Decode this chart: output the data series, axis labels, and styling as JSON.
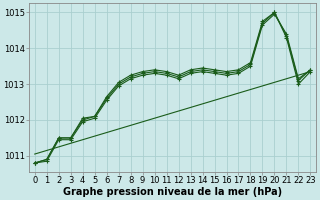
{
  "xlabel": "Graphe pression niveau de la mer (hPa)",
  "bg_color": "#cce8e8",
  "grid_color": "#aacfcf",
  "line_color": "#1a5c1a",
  "x_values": [
    0,
    1,
    2,
    3,
    4,
    5,
    6,
    7,
    8,
    9,
    10,
    11,
    12,
    13,
    14,
    15,
    16,
    17,
    18,
    19,
    20,
    21,
    22,
    23
  ],
  "series1": [
    1010.8,
    1010.9,
    1011.5,
    1011.5,
    1012.0,
    1012.1,
    1012.6,
    1013.0,
    1013.2,
    1013.3,
    1013.35,
    1013.3,
    1013.2,
    1013.35,
    1013.4,
    1013.35,
    1013.3,
    1013.35,
    1013.55,
    1014.7,
    1015.0,
    1014.35,
    1013.1,
    1013.4
  ],
  "series2": [
    1010.8,
    1010.9,
    1011.5,
    1011.5,
    1012.05,
    1012.1,
    1012.65,
    1013.05,
    1013.25,
    1013.35,
    1013.4,
    1013.35,
    1013.25,
    1013.4,
    1013.45,
    1013.4,
    1013.35,
    1013.4,
    1013.6,
    1014.75,
    1015.0,
    1014.3,
    1013.0,
    1013.35
  ],
  "series3": [
    1010.8,
    1010.85,
    1011.45,
    1011.45,
    1011.95,
    1012.05,
    1012.55,
    1012.95,
    1013.15,
    1013.25,
    1013.3,
    1013.25,
    1013.15,
    1013.3,
    1013.35,
    1013.3,
    1013.25,
    1013.3,
    1013.5,
    1014.65,
    1014.95,
    1014.4,
    1013.15,
    1013.4
  ],
  "trend_y": [
    1011.05,
    1013.35
  ],
  "trend_x": [
    0,
    23
  ],
  "ylim": [
    1010.55,
    1015.25
  ],
  "yticks": [
    1011,
    1012,
    1013,
    1014,
    1015
  ],
  "xticks": [
    0,
    1,
    2,
    3,
    4,
    5,
    6,
    7,
    8,
    9,
    10,
    11,
    12,
    13,
    14,
    15,
    16,
    17,
    18,
    19,
    20,
    21,
    22,
    23
  ],
  "tick_labels": [
    "0",
    "1",
    "2",
    "3",
    "4",
    "5",
    "6",
    "7",
    "8",
    "9",
    "10",
    "11",
    "12",
    "13",
    "14",
    "15",
    "16",
    "17",
    "18",
    "19",
    "20",
    "21",
    "22",
    "23"
  ],
  "markersize": 3,
  "linewidth": 0.8,
  "tick_fontsize": 6,
  "label_fontsize": 7
}
